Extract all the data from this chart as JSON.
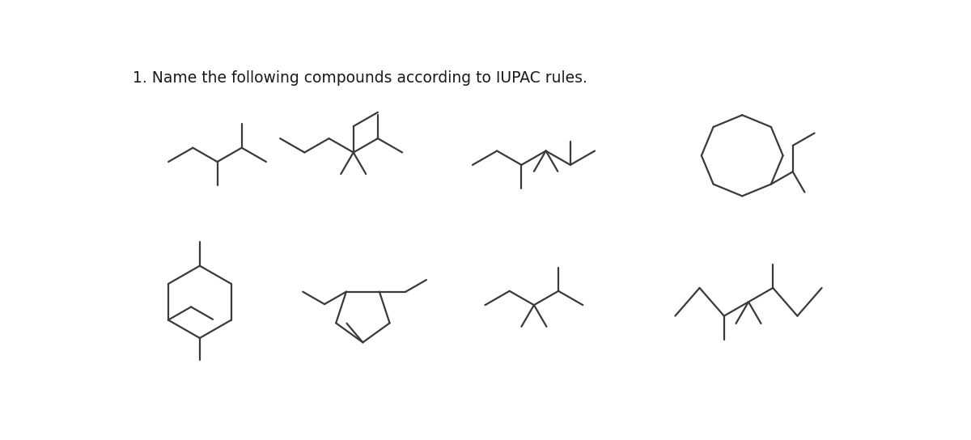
{
  "title": "1. Name the following compounds according to IUPAC rules.",
  "title_fontsize": 13.5,
  "bg_color": "#ffffff",
  "line_color": "#3a3a3a",
  "line_width": 1.6
}
